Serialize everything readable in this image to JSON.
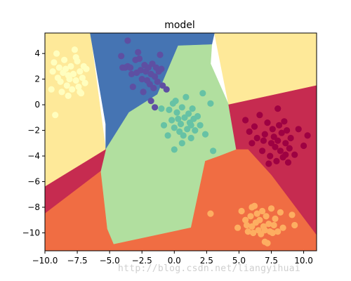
{
  "chart_data": {
    "type": "scatter",
    "title": "model",
    "xlabel": "",
    "ylabel": "",
    "xlim": [
      -10.0,
      11.0
    ],
    "ylim": [
      -11.4,
      5.6
    ],
    "xticks": [
      -10.0,
      -7.5,
      -5.0,
      -2.5,
      0.0,
      2.5,
      5.0,
      7.5,
      10.0
    ],
    "xtick_labels": [
      "−10.0",
      "−7.5",
      "−5.0",
      "−2.5",
      "0.0",
      "2.5",
      "5.0",
      "7.5",
      "10.0"
    ],
    "yticks": [
      4,
      2,
      0,
      -2,
      -4,
      -6,
      -8,
      -10
    ],
    "ytick_labels": [
      "4",
      "2",
      "0",
      "−2",
      "−4",
      "−6",
      "−8",
      "−10"
    ],
    "grid": false,
    "legend": "none",
    "regions": [
      {
        "color": "#fee999",
        "polygon": [
          [
            -10,
            5.6
          ],
          [
            -6.5,
            5.6
          ],
          [
            -5.3,
            -3.5
          ],
          [
            -10,
            -6.4
          ]
        ]
      },
      {
        "color": "#fee999",
        "polygon": [
          [
            3.1,
            5.6
          ],
          [
            11,
            5.6
          ],
          [
            11,
            1.5
          ],
          [
            4.2,
            0
          ]
        ]
      },
      {
        "color": "#4574b3",
        "polygon": [
          [
            -6.5,
            5.6
          ],
          [
            3.1,
            5.6
          ],
          [
            2.9,
            4.7
          ],
          [
            0.3,
            4.6
          ],
          [
            -1.3,
            0.8
          ],
          [
            -3.5,
            -0.6
          ],
          [
            -5.3,
            -3.5
          ],
          [
            -5.3,
            -1.5
          ]
        ]
      },
      {
        "color": "#b1df9f",
        "polygon": [
          [
            0.3,
            4.6
          ],
          [
            2.9,
            4.7
          ],
          [
            2.8,
            3.2
          ],
          [
            4.2,
            0
          ],
          [
            4.8,
            -3.5
          ],
          [
            3.5,
            -4.0
          ],
          [
            2.4,
            -4.4
          ],
          [
            1.3,
            -9.6
          ],
          [
            -4.7,
            -10.9
          ],
          [
            -5.2,
            -9.7
          ],
          [
            -5.7,
            -5.2
          ],
          [
            -5.3,
            -3.5
          ],
          [
            -3.5,
            -0.6
          ],
          [
            -1.3,
            0.8
          ]
        ]
      },
      {
        "color": "#c62b50",
        "polygon": [
          [
            4.2,
            0
          ],
          [
            11,
            1.5
          ],
          [
            11,
            -10.2
          ],
          [
            7.5,
            -5.5
          ],
          [
            5.7,
            -3.5
          ],
          [
            4.8,
            -3.5
          ]
        ]
      },
      {
        "color": "#c62b50",
        "polygon": [
          [
            -10,
            -6.4
          ],
          [
            -5.3,
            -3.5
          ],
          [
            -5.7,
            -5.2
          ],
          [
            -10,
            -8.5
          ]
        ]
      },
      {
        "color": "#f06d43",
        "polygon": [
          [
            -10,
            -8.5
          ],
          [
            -5.7,
            -5.2
          ],
          [
            -5.2,
            -9.7
          ],
          [
            -4.7,
            -10.9
          ],
          [
            1.3,
            -9.6
          ],
          [
            2.4,
            -4.4
          ],
          [
            3.5,
            -4.0
          ],
          [
            4.8,
            -3.5
          ],
          [
            5.7,
            -3.5
          ],
          [
            7.5,
            -5.5
          ],
          [
            11,
            -10.2
          ],
          [
            11,
            -11.4
          ],
          [
            -10,
            -11.4
          ]
        ]
      }
    ],
    "series": [
      {
        "color": "#fffebf",
        "points": [
          [
            -9.4,
            2.6
          ],
          [
            -9.3,
            3.3
          ],
          [
            -9.1,
            4.0
          ],
          [
            -9.0,
            2.1
          ],
          [
            -8.8,
            1.8
          ],
          [
            -8.7,
            1.0
          ],
          [
            -8.6,
            2.5
          ],
          [
            -8.5,
            3.5
          ],
          [
            -8.4,
            2.8
          ],
          [
            -8.3,
            1.5
          ],
          [
            -8.2,
            0.7
          ],
          [
            -8.1,
            2.0
          ],
          [
            -8.0,
            3.0
          ],
          [
            -7.9,
            1.2
          ],
          [
            -7.8,
            2.4
          ],
          [
            -7.7,
            4.3
          ],
          [
            -7.6,
            1.9
          ],
          [
            -7.5,
            3.4
          ],
          [
            -7.4,
            1.4
          ],
          [
            -7.3,
            2.6
          ],
          [
            -7.2,
            0.9
          ],
          [
            -7.1,
            2.1
          ],
          [
            -7.0,
            3.0
          ],
          [
            -6.9,
            1.7
          ],
          [
            -6.8,
            2.8
          ],
          [
            -9.5,
            1.2
          ],
          [
            -9.2,
            -0.8
          ],
          [
            -8.9,
            2.9
          ],
          [
            -7.6,
            3.7
          ],
          [
            -7.3,
            1.0
          ],
          [
            -8.2,
            2.3
          ]
        ]
      },
      {
        "color": "#5e4fa2",
        "points": [
          [
            -4.1,
            3.8
          ],
          [
            -4.0,
            2.9
          ],
          [
            -3.8,
            2.9
          ],
          [
            -3.6,
            3.0
          ],
          [
            -3.4,
            2.9
          ],
          [
            -3.3,
            2.4
          ],
          [
            -3.2,
            1.4
          ],
          [
            -3.0,
            3.5
          ],
          [
            -2.9,
            2.5
          ],
          [
            -2.8,
            4.1
          ],
          [
            -2.6,
            2.7
          ],
          [
            -2.5,
            2.0
          ],
          [
            -2.4,
            1.0
          ],
          [
            -2.3,
            3.1
          ],
          [
            -2.2,
            2.6
          ],
          [
            -2.0,
            2.9
          ],
          [
            -1.9,
            1.6
          ],
          [
            -1.8,
            2.4
          ],
          [
            -1.7,
            3.2
          ],
          [
            -1.6,
            1.3
          ],
          [
            -1.5,
            2.2
          ],
          [
            -1.4,
            2.9
          ],
          [
            -1.3,
            1.8
          ],
          [
            -1.2,
            2.6
          ],
          [
            -1.0,
            2.8
          ],
          [
            -0.9,
            1.5
          ],
          [
            -1.8,
            0.3
          ],
          [
            -1.5,
            -0.2
          ],
          [
            -2.1,
            1.9
          ],
          [
            -2.7,
            3.6
          ],
          [
            -1.1,
            3.9
          ],
          [
            -0.6,
            1.2
          ],
          [
            -3.6,
            5.0
          ]
        ]
      },
      {
        "color": "#66c2a5",
        "points": [
          [
            -1.0,
            -0.3
          ],
          [
            -0.8,
            -1.6
          ],
          [
            -0.5,
            -2.4
          ],
          [
            -0.4,
            -0.4
          ],
          [
            -0.2,
            -1.2
          ],
          [
            0.0,
            -3.5
          ],
          [
            0.0,
            -1.8
          ],
          [
            0.1,
            0.3
          ],
          [
            0.2,
            -0.6
          ],
          [
            0.3,
            -1.1
          ],
          [
            0.4,
            -2.1
          ],
          [
            0.5,
            -1.5
          ],
          [
            0.6,
            -0.2
          ],
          [
            0.7,
            -2.4
          ],
          [
            0.8,
            -1.0
          ],
          [
            0.9,
            0.6
          ],
          [
            1.0,
            -1.9
          ],
          [
            1.1,
            -0.7
          ],
          [
            1.2,
            -1.4
          ],
          [
            1.3,
            -2.6
          ],
          [
            1.4,
            -0.3
          ],
          [
            1.5,
            -1.1
          ],
          [
            1.6,
            -2.0
          ],
          [
            1.8,
            -0.9
          ],
          [
            2.0,
            -1.6
          ],
          [
            2.2,
            0.9
          ],
          [
            2.4,
            -2.3
          ],
          [
            2.8,
            0.1
          ],
          [
            3.0,
            -3.6
          ],
          [
            0.6,
            -3.0
          ],
          [
            -0.1,
            0.1
          ],
          [
            1.3,
            -1.6
          ]
        ]
      },
      {
        "color": "#9e0142",
        "points": [
          [
            5.5,
            -1.2
          ],
          [
            5.8,
            -2.1
          ],
          [
            6.0,
            -3.0
          ],
          [
            6.2,
            -1.7
          ],
          [
            6.4,
            -2.6
          ],
          [
            6.6,
            -0.8
          ],
          [
            6.8,
            -3.6
          ],
          [
            7.0,
            -2.3
          ],
          [
            7.2,
            -1.4
          ],
          [
            7.4,
            -4.0
          ],
          [
            7.5,
            -3.0
          ],
          [
            7.6,
            -1.9
          ],
          [
            7.7,
            -2.5
          ],
          [
            7.8,
            -3.3
          ],
          [
            7.9,
            -4.4
          ],
          [
            8.0,
            -2.8
          ],
          [
            8.1,
            -1.6
          ],
          [
            8.2,
            -3.6
          ],
          [
            8.3,
            -2.2
          ],
          [
            8.4,
            -4.1
          ],
          [
            8.5,
            -1.3
          ],
          [
            8.6,
            -3.0
          ],
          [
            8.7,
            -2.0
          ],
          [
            8.8,
            -4.5
          ],
          [
            8.9,
            -3.4
          ],
          [
            9.0,
            -2.6
          ],
          [
            9.3,
            -3.9
          ],
          [
            9.6,
            -1.9
          ],
          [
            10.0,
            -3.2
          ],
          [
            10.3,
            -2.4
          ],
          [
            7.3,
            -4.6
          ],
          [
            8.0,
            -0.3
          ],
          [
            6.9,
            -2.8
          ],
          [
            8.6,
            -3.9
          ]
        ]
      },
      {
        "color": "#fdae61",
        "points": [
          [
            2.8,
            -8.5
          ],
          [
            4.9,
            -9.6
          ],
          [
            5.2,
            -8.3
          ],
          [
            5.5,
            -9.0
          ],
          [
            5.6,
            -9.4
          ],
          [
            5.7,
            -9.9
          ],
          [
            5.9,
            -8.7
          ],
          [
            6.0,
            -9.5
          ],
          [
            6.1,
            -10.0
          ],
          [
            6.2,
            -7.9
          ],
          [
            6.3,
            -9.2
          ],
          [
            6.4,
            -8.5
          ],
          [
            6.5,
            -9.8
          ],
          [
            6.6,
            -9.0
          ],
          [
            6.7,
            -10.1
          ],
          [
            6.8,
            -8.3
          ],
          [
            6.9,
            -9.5
          ],
          [
            7.0,
            -9.8
          ],
          [
            7.1,
            -8.7
          ],
          [
            7.2,
            -10.8
          ],
          [
            7.3,
            -9.3
          ],
          [
            7.4,
            -9.9
          ],
          [
            7.5,
            -8.1
          ],
          [
            7.6,
            -10.0
          ],
          [
            7.7,
            -9.4
          ],
          [
            7.8,
            -8.9
          ],
          [
            8.0,
            -9.9
          ],
          [
            8.2,
            -8.4
          ],
          [
            8.4,
            -9.6
          ],
          [
            9.1,
            -8.6
          ],
          [
            9.3,
            -9.4
          ],
          [
            7.0,
            -10.7
          ],
          [
            6.0,
            -8.0
          ]
        ]
      }
    ]
  },
  "watermark": "http://blog.csdn.net/liangyihuai"
}
